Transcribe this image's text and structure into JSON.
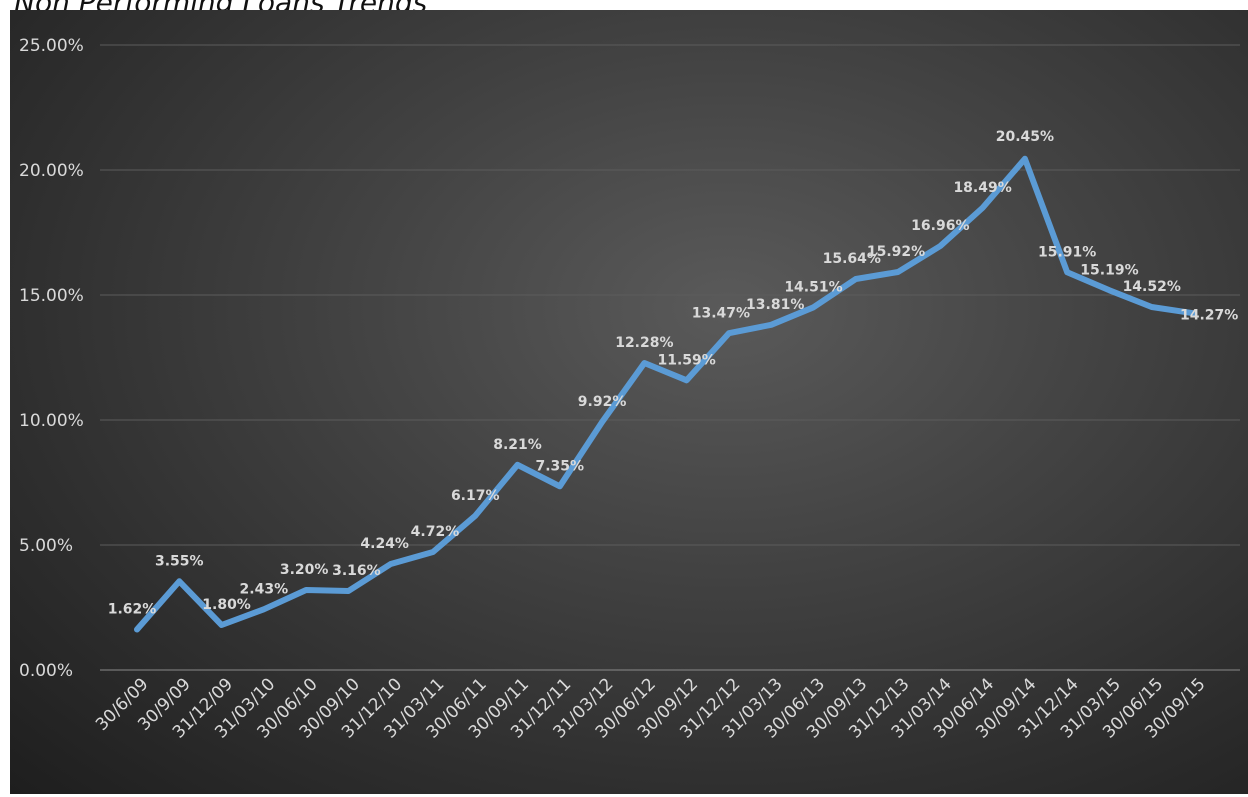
{
  "chart_data": {
    "type": "line",
    "title": "Non Performing Loans Trends",
    "categories": [
      "30/6/09",
      "30/9/09",
      "31/12/09",
      "31/03/10",
      "30/06/10",
      "30/09/10",
      "31/12/10",
      "31/03/11",
      "30/06/11",
      "30/09/11",
      "31/12/11",
      "31/03/12",
      "30/06/12",
      "30/09/12",
      "31/12/12",
      "31/03/13",
      "30/06/13",
      "30/09/13",
      "31/12/13",
      "31/03/14",
      "30/06/14",
      "30/09/14",
      "31/12/14",
      "31/03/15",
      "30/06/15",
      "30/09/15"
    ],
    "series": [
      {
        "values": [
          1.62,
          3.55,
          1.8,
          2.43,
          3.2,
          3.16,
          4.24,
          4.72,
          6.17,
          8.21,
          7.35,
          9.92,
          12.28,
          11.59,
          13.47,
          13.81,
          14.51,
          15.64,
          15.92,
          16.96,
          18.49,
          20.45,
          15.91,
          15.19,
          14.52,
          14.27
        ],
        "labels": [
          "1.62%",
          "3.55%",
          "1.80%",
          "2.43%",
          "3.20%",
          "3.16%",
          "4.24%",
          "4.72%",
          "6.17%",
          "8.21%",
          "7.35%",
          "9.92%",
          "12.28%",
          "11.59%",
          "13.47%",
          "13.81%",
          "14.51%",
          "15.64%",
          "15.92%",
          "16.96%",
          "18.49%",
          "20.45%",
          "15.91%",
          "15.19%",
          "14.52%",
          "14.27%"
        ],
        "color": "#5b9bd5"
      }
    ],
    "ylim": [
      0,
      25
    ],
    "yticks": [
      0,
      5,
      10,
      15,
      20,
      25
    ],
    "ytick_labels": [
      "0.00%",
      "5.00%",
      "10.00%",
      "15.00%",
      "20.00%",
      "25.00%"
    ],
    "grid": true,
    "legend": "none",
    "xlabel": "",
    "ylabel": ""
  }
}
